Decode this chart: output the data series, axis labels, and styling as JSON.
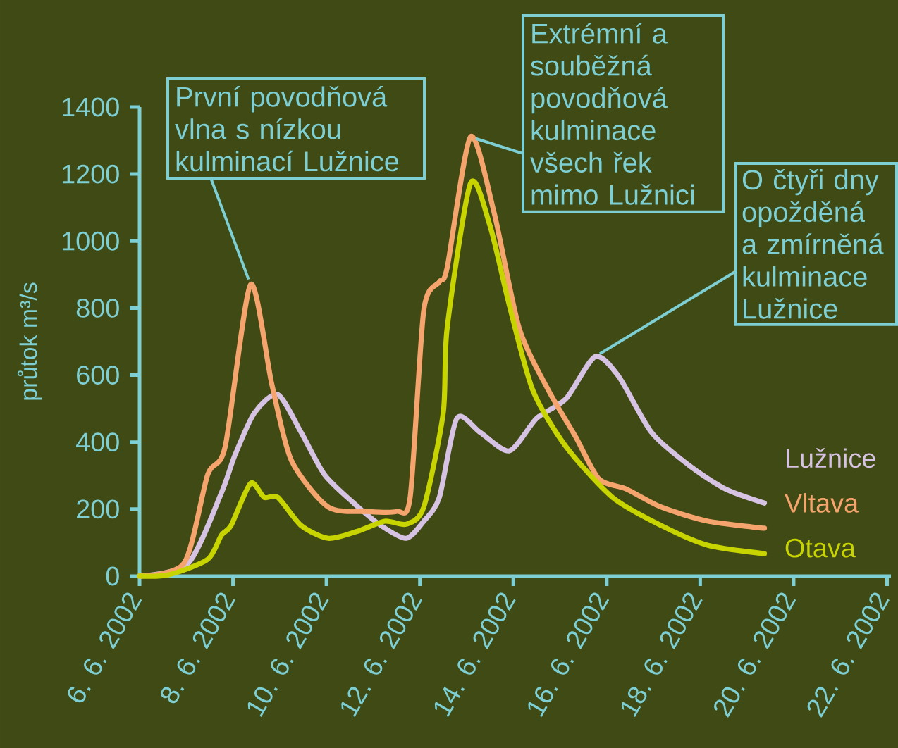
{
  "chart_data": {
    "type": "line",
    "ylabel": "průtok m³/s",
    "xlim": [
      "2002-06-06",
      "2002-06-22T02:00"
    ],
    "ylim": [
      0,
      1400
    ],
    "xticks": [
      {
        "value": "2002-06-06",
        "label": "6. 6. 2002"
      },
      {
        "value": "2002-06-08",
        "label": "8. 6. 2002"
      },
      {
        "value": "2002-06-10",
        "label": "10. 6. 2002"
      },
      {
        "value": "2002-06-12",
        "label": "12. 6. 2002"
      },
      {
        "value": "2002-06-14",
        "label": "14. 6. 2002"
      },
      {
        "value": "2002-06-16",
        "label": "16. 6. 2002"
      },
      {
        "value": "2002-06-18",
        "label": "18. 6. 2002"
      },
      {
        "value": "2002-06-20",
        "label": "20. 6. 2002"
      },
      {
        "value": "2002-06-22",
        "label": "22. 6. 2002"
      }
    ],
    "yticks": [
      0,
      200,
      400,
      600,
      800,
      1000,
      1200,
      1400
    ],
    "grid": false,
    "legend": false,
    "marker": "none",
    "line_style": "solid",
    "series": [
      {
        "name": "Lužnice",
        "color": "#d6c2e2",
        "x": [
          "2002-06-06T00:00",
          "2002-06-07T01:00",
          "2002-06-07T18:00",
          "2002-06-08T01:00",
          "2002-06-08T11:00",
          "2002-06-08T23:00",
          "2002-06-09T11:00",
          "2002-06-09T23:00",
          "2002-06-10T14:00",
          "2002-06-11T04:00",
          "2002-06-11T17:00",
          "2002-06-12T02:00",
          "2002-06-12T10:00",
          "2002-06-12T19:00",
          "2002-06-13T07:00",
          "2002-06-13T22:00",
          "2002-06-14T12:00",
          "2002-06-15T03:00",
          "2002-06-15T18:00",
          "2002-06-16T06:00",
          "2002-06-16T23:00",
          "2002-06-17T18:00",
          "2002-06-18T13:00",
          "2002-06-19T09:00"
        ],
        "values": [
          0,
          38,
          248,
          361,
          487,
          542,
          429,
          303,
          218,
          151,
          113,
          164,
          235,
          471,
          429,
          374,
          471,
          529,
          655,
          597,
          429,
          332,
          260,
          218
        ]
      },
      {
        "name": "Vltava",
        "color": "#f4a46c",
        "x": [
          "2002-06-06T00:00",
          "2002-06-06T23:00",
          "2002-06-07T11:00",
          "2002-06-07T20:00",
          "2002-06-08T09:00",
          "2002-06-08T20:00",
          "2002-06-09T06:00",
          "2002-06-10T01:00",
          "2002-06-10T21:00",
          "2002-06-11T12:00",
          "2002-06-11T19:00",
          "2002-06-12T02:00",
          "2002-06-12T10:00",
          "2002-06-12T14:00",
          "2002-06-13T02:00",
          "2002-06-13T14:00",
          "2002-06-14T03:00",
          "2002-06-14T18:00",
          "2002-06-15T08:00",
          "2002-06-15T20:00",
          "2002-06-16T10:00",
          "2002-06-17T04:00",
          "2002-06-18T04:00",
          "2002-06-19T09:00"
        ],
        "values": [
          0,
          40,
          303,
          387,
          870,
          571,
          345,
          206,
          193,
          193,
          235,
          794,
          878,
          920,
          1311,
          1088,
          740,
          555,
          416,
          290,
          260,
          206,
          164,
          143
        ]
      },
      {
        "name": "Otava",
        "color": "#c8d400",
        "x": [
          "2002-06-06T00:00",
          "2002-06-06T15:00",
          "2002-06-07T11:00",
          "2002-06-07T18:00",
          "2002-06-07T23:00",
          "2002-06-08T09:00",
          "2002-06-08T16:00",
          "2002-06-08T23:00",
          "2002-06-09T11:00",
          "2002-06-10T01:00",
          "2002-06-10T16:00",
          "2002-06-11T06:00",
          "2002-06-11T17:00",
          "2002-06-12T02:00",
          "2002-06-12T12:00",
          "2002-06-12T14:00",
          "2002-06-13T02:00",
          "2002-06-13T12:00",
          "2002-06-13T22:00",
          "2002-06-14T10:00",
          "2002-06-15T03:00",
          "2002-06-16T03:00",
          "2002-06-17T04:00",
          "2002-06-18T04:00",
          "2002-06-19T09:00"
        ],
        "values": [
          0,
          4,
          50,
          122,
          151,
          277,
          235,
          235,
          151,
          113,
          134,
          164,
          155,
          206,
          487,
          740,
          1172,
          1046,
          807,
          555,
          387,
          235,
          151,
          92,
          67
        ]
      }
    ],
    "annotations": [
      {
        "text": "První povodňová vlna s nízkou kulminací Lužnice",
        "x": "2002-06-08T09:00",
        "y": 870
      },
      {
        "text": "Extrémní a souběžná povodňová kulminace všech řek mimo Lužnici",
        "x": "2002-06-13T02:00",
        "y": 1311
      },
      {
        "text": "O čtyři dny opožděná a zmírněná kulminace Lužnice",
        "x": "2002-06-15T18:00",
        "y": 655
      }
    ]
  }
}
